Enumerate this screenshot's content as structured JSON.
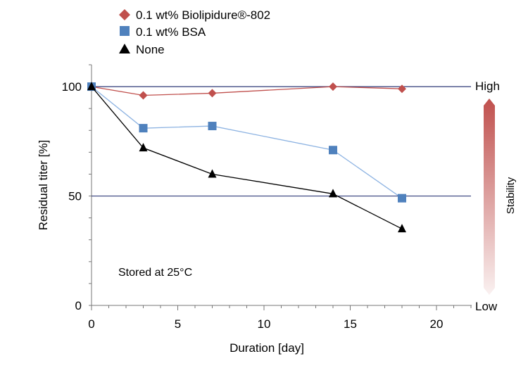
{
  "chart_data": {
    "type": "line",
    "xlabel": "Duration [day]",
    "ylabel": "Residual titer [%]",
    "xlim": [
      0,
      22
    ],
    "ylim": [
      0,
      110
    ],
    "xticks": [
      0,
      5,
      10,
      15,
      20
    ],
    "yticks": [
      0,
      50,
      100
    ],
    "hlines": [
      100,
      50
    ],
    "legend_position": "top-left",
    "annotation": "Stored at 25°C",
    "series": [
      {
        "name": "0.1 wt% Biolipidure®-802",
        "marker": "diamond",
        "color": "#c0504d",
        "x": [
          0,
          3,
          7,
          14,
          18
        ],
        "y": [
          100,
          96,
          97,
          100,
          99
        ]
      },
      {
        "name": "0.1 wt% BSA",
        "marker": "square",
        "color": "#4f81bd",
        "x": [
          0,
          3,
          7,
          14,
          18
        ],
        "y": [
          100,
          81,
          82,
          71,
          49
        ]
      },
      {
        "name": "None",
        "marker": "triangle",
        "color": "#000000",
        "x": [
          0,
          3,
          7,
          14,
          18
        ],
        "y": [
          100,
          72,
          60,
          51,
          35
        ]
      }
    ],
    "stability_scale": {
      "label": "Stability",
      "high": "High",
      "low": "Low",
      "color": "#c0504d"
    }
  }
}
